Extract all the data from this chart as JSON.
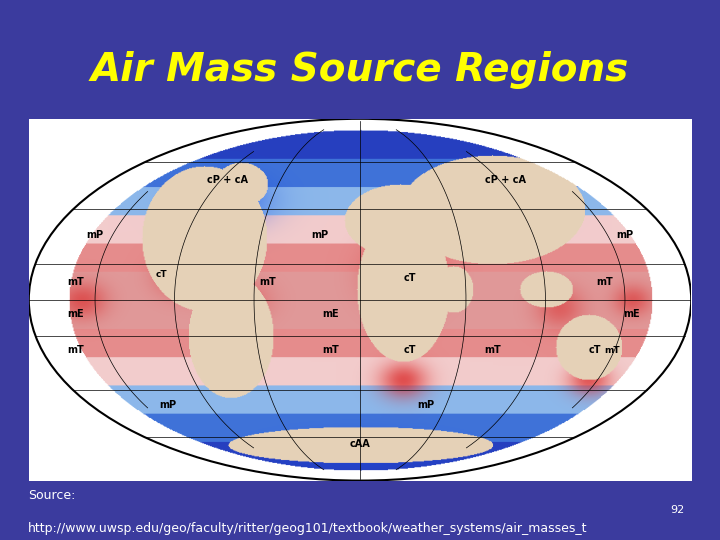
{
  "title": "Air Mass Source Regions",
  "title_color": "#FFFF00",
  "title_fontsize": 28,
  "title_fontstyle": "italic",
  "title_fontweight": "bold",
  "bg_outer": "#3B3B9E",
  "bg_title": "#808080",
  "bg_content": "#FFFFFF",
  "source_line1": "Source:",
  "source_line2": "http://www.uwsp.edu/geo/faculty/ritter/geog101/textbook/weather_systems/air_masses_t",
  "page_number": "92",
  "source_color": "#FFFFFF",
  "source_fontsize": 9,
  "page_number_fontsize": 8
}
